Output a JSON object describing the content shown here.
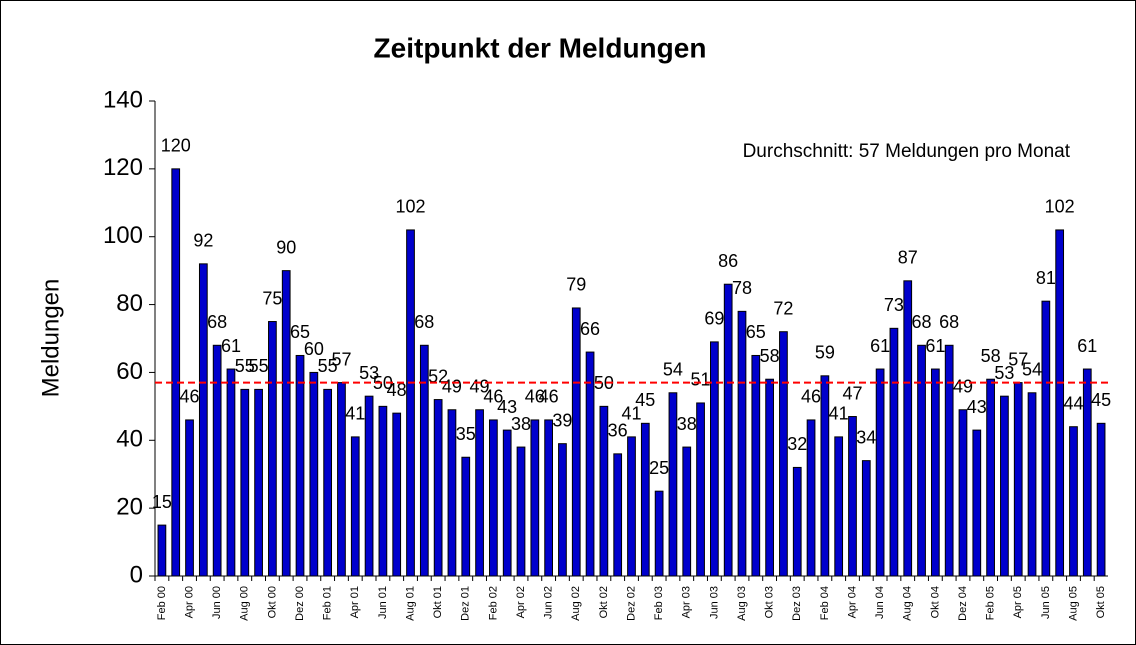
{
  "chart_data": {
    "type": "bar",
    "title": "Zeitpunkt der Meldungen",
    "ylabel": "Meldungen",
    "annotation": "Durchschnitt: 57 Meldungen pro Monat",
    "average": 57,
    "average_color": "#ff0000",
    "color": "#0000cc",
    "grid": false,
    "categories": [
      "Feb 00",
      null,
      "Apr 00",
      null,
      "Jun 00",
      null,
      "Aug 00",
      null,
      "Okt 00",
      null,
      "Dez 00",
      null,
      "Feb 01",
      null,
      "Apr 01",
      null,
      "Jun 01",
      null,
      "Aug 01",
      null,
      "Okt 01",
      null,
      "Dez 01",
      null,
      "Feb 02",
      null,
      "Apr 02",
      null,
      "Jun 02",
      null,
      "Aug 02",
      null,
      "Okt 02",
      null,
      "Dez 02",
      null,
      "Feb 03",
      null,
      "Apr 03",
      null,
      "Jun 03",
      null,
      "Aug 03",
      null,
      "Okt 03",
      null,
      "Dez 03",
      null,
      "Feb 04",
      null,
      "Apr 04",
      null,
      "Jun 04",
      null,
      "Aug 04",
      null,
      "Okt 04",
      null,
      "Dez 04",
      null,
      "Feb 05",
      null,
      "Apr 05",
      null,
      "Jun 05",
      null,
      "Aug 05",
      null,
      "Okt 05"
    ],
    "values": [
      15,
      120,
      46,
      92,
      68,
      61,
      55,
      55,
      75,
      90,
      65,
      60,
      55,
      57,
      41,
      53,
      50,
      48,
      102,
      68,
      52,
      49,
      35,
      49,
      46,
      43,
      38,
      46,
      46,
      39,
      79,
      66,
      50,
      36,
      41,
      45,
      25,
      54,
      38,
      51,
      69,
      86,
      78,
      65,
      58,
      72,
      32,
      46,
      59,
      41,
      47,
      34,
      61,
      73,
      87,
      68,
      61,
      68,
      49,
      43,
      58,
      53,
      57,
      54,
      81,
      102,
      44,
      61,
      45
    ],
    "ylim": [
      0,
      140
    ],
    "yticks": [
      0,
      20,
      40,
      60,
      80,
      100,
      120,
      140
    ]
  }
}
